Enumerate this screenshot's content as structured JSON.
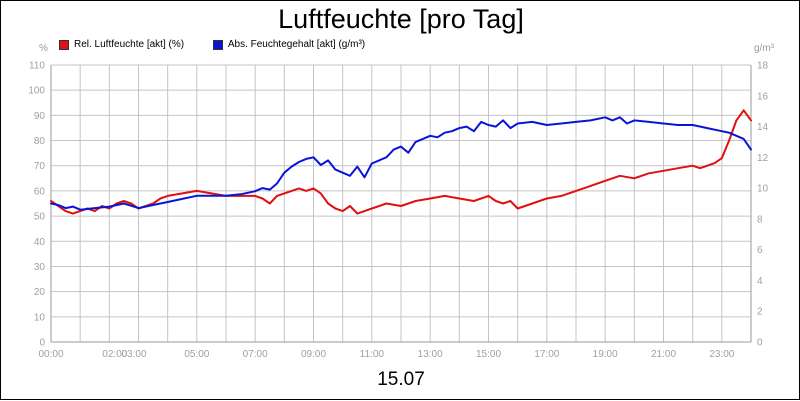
{
  "chart_data": {
    "type": "line",
    "title": "Luftfeuchte [pro Tag]",
    "xlabel": "15.07",
    "x_ticks": [
      {
        "h": 0,
        "label": "00:00"
      },
      {
        "h": 2,
        "label": "02:00"
      },
      {
        "h": 3,
        "label": "03:00"
      },
      {
        "h": 5,
        "label": "05:00"
      },
      {
        "h": 7,
        "label": "07:00"
      },
      {
        "h": 9,
        "label": "09:00"
      },
      {
        "h": 11,
        "label": "11:00"
      },
      {
        "h": 13,
        "label": "13:00"
      },
      {
        "h": 15,
        "label": "15:00"
      },
      {
        "h": 17,
        "label": "17:00"
      },
      {
        "h": 19,
        "label": "19:00"
      },
      {
        "h": 21,
        "label": "21:00"
      },
      {
        "h": 23,
        "label": "23:00"
      }
    ],
    "xlim": [
      0,
      24
    ],
    "y_left": {
      "unit": "%",
      "lim": [
        0,
        110
      ],
      "ticks": [
        0,
        10,
        20,
        30,
        40,
        50,
        60,
        70,
        80,
        90,
        100,
        110
      ]
    },
    "y_right": {
      "unit": "g/m³",
      "lim": [
        0,
        18
      ],
      "ticks": [
        0,
        2,
        4,
        6,
        8,
        10,
        12,
        14,
        16,
        18
      ]
    },
    "grid": true,
    "legend_position": "top-left",
    "series": [
      {
        "name": "Rel. Luftfeuchte [akt] (%)",
        "color": "#e01010",
        "axis": "left",
        "x": [
          0,
          0.25,
          0.5,
          0.75,
          1,
          1.25,
          1.5,
          1.75,
          2,
          2.25,
          2.5,
          2.75,
          3,
          3.25,
          3.5,
          3.75,
          4,
          4.5,
          5,
          5.5,
          6,
          6.5,
          7,
          7.25,
          7.5,
          7.75,
          8,
          8.25,
          8.5,
          8.75,
          9,
          9.25,
          9.5,
          9.75,
          10,
          10.25,
          10.5,
          10.75,
          11,
          11.5,
          12,
          12.5,
          13,
          13.5,
          14,
          14.5,
          15,
          15.25,
          15.5,
          15.75,
          16,
          16.25,
          16.5,
          16.75,
          17,
          17.5,
          18,
          18.5,
          19,
          19.5,
          20,
          20.5,
          21,
          21.5,
          22,
          22.25,
          22.5,
          22.75,
          23,
          23.25,
          23.5,
          23.75,
          24
        ],
        "values": [
          56,
          54,
          52,
          51,
          52,
          53,
          52,
          54,
          53,
          55,
          56,
          55,
          53,
          54,
          55,
          57,
          58,
          59,
          60,
          59,
          58,
          58,
          58,
          57,
          55,
          58,
          59,
          60,
          61,
          60,
          61,
          59,
          55,
          53,
          52,
          54,
          51,
          52,
          53,
          55,
          54,
          56,
          57,
          58,
          57,
          56,
          58,
          56,
          55,
          56,
          53,
          54,
          55,
          56,
          57,
          58,
          60,
          62,
          64,
          66,
          65,
          67,
          68,
          69,
          70,
          69,
          70,
          71,
          73,
          80,
          88,
          92,
          88
        ]
      },
      {
        "name": "Abs. Feuchtegehalt [akt] (g/m³)",
        "color": "#0a14d8",
        "axis": "right",
        "x": [
          0,
          0.25,
          0.5,
          0.75,
          1,
          1.5,
          2,
          2.5,
          3,
          3.5,
          4,
          4.5,
          5,
          5.5,
          6,
          6.5,
          7,
          7.25,
          7.5,
          7.75,
          8,
          8.25,
          8.5,
          8.75,
          9,
          9.25,
          9.5,
          9.75,
          10,
          10.25,
          10.5,
          10.75,
          11,
          11.25,
          11.5,
          11.75,
          12,
          12.25,
          12.5,
          12.75,
          13,
          13.25,
          13.5,
          13.75,
          14,
          14.25,
          14.5,
          14.75,
          15,
          15.25,
          15.5,
          15.75,
          16,
          16.5,
          17,
          17.5,
          18,
          18.5,
          19,
          19.25,
          19.5,
          19.75,
          20,
          20.5,
          21,
          21.5,
          22,
          22.5,
          23,
          23.25,
          23.5,
          23.75,
          24
        ],
        "values": [
          9.0,
          8.9,
          8.7,
          8.8,
          8.6,
          8.7,
          8.8,
          9.0,
          8.7,
          8.9,
          9.1,
          9.3,
          9.5,
          9.5,
          9.5,
          9.6,
          9.8,
          10.0,
          9.9,
          10.3,
          11.0,
          11.4,
          11.7,
          11.9,
          12.0,
          11.5,
          11.8,
          11.2,
          11.0,
          10.8,
          11.4,
          10.7,
          11.6,
          11.8,
          12.0,
          12.5,
          12.7,
          12.3,
          13.0,
          13.2,
          13.4,
          13.3,
          13.6,
          13.7,
          13.9,
          14.0,
          13.7,
          14.3,
          14.1,
          14.0,
          14.4,
          13.9,
          14.2,
          14.3,
          14.1,
          14.2,
          14.3,
          14.4,
          14.6,
          14.4,
          14.6,
          14.2,
          14.4,
          14.3,
          14.2,
          14.1,
          14.1,
          13.9,
          13.7,
          13.6,
          13.4,
          13.2,
          12.5
        ]
      }
    ]
  }
}
